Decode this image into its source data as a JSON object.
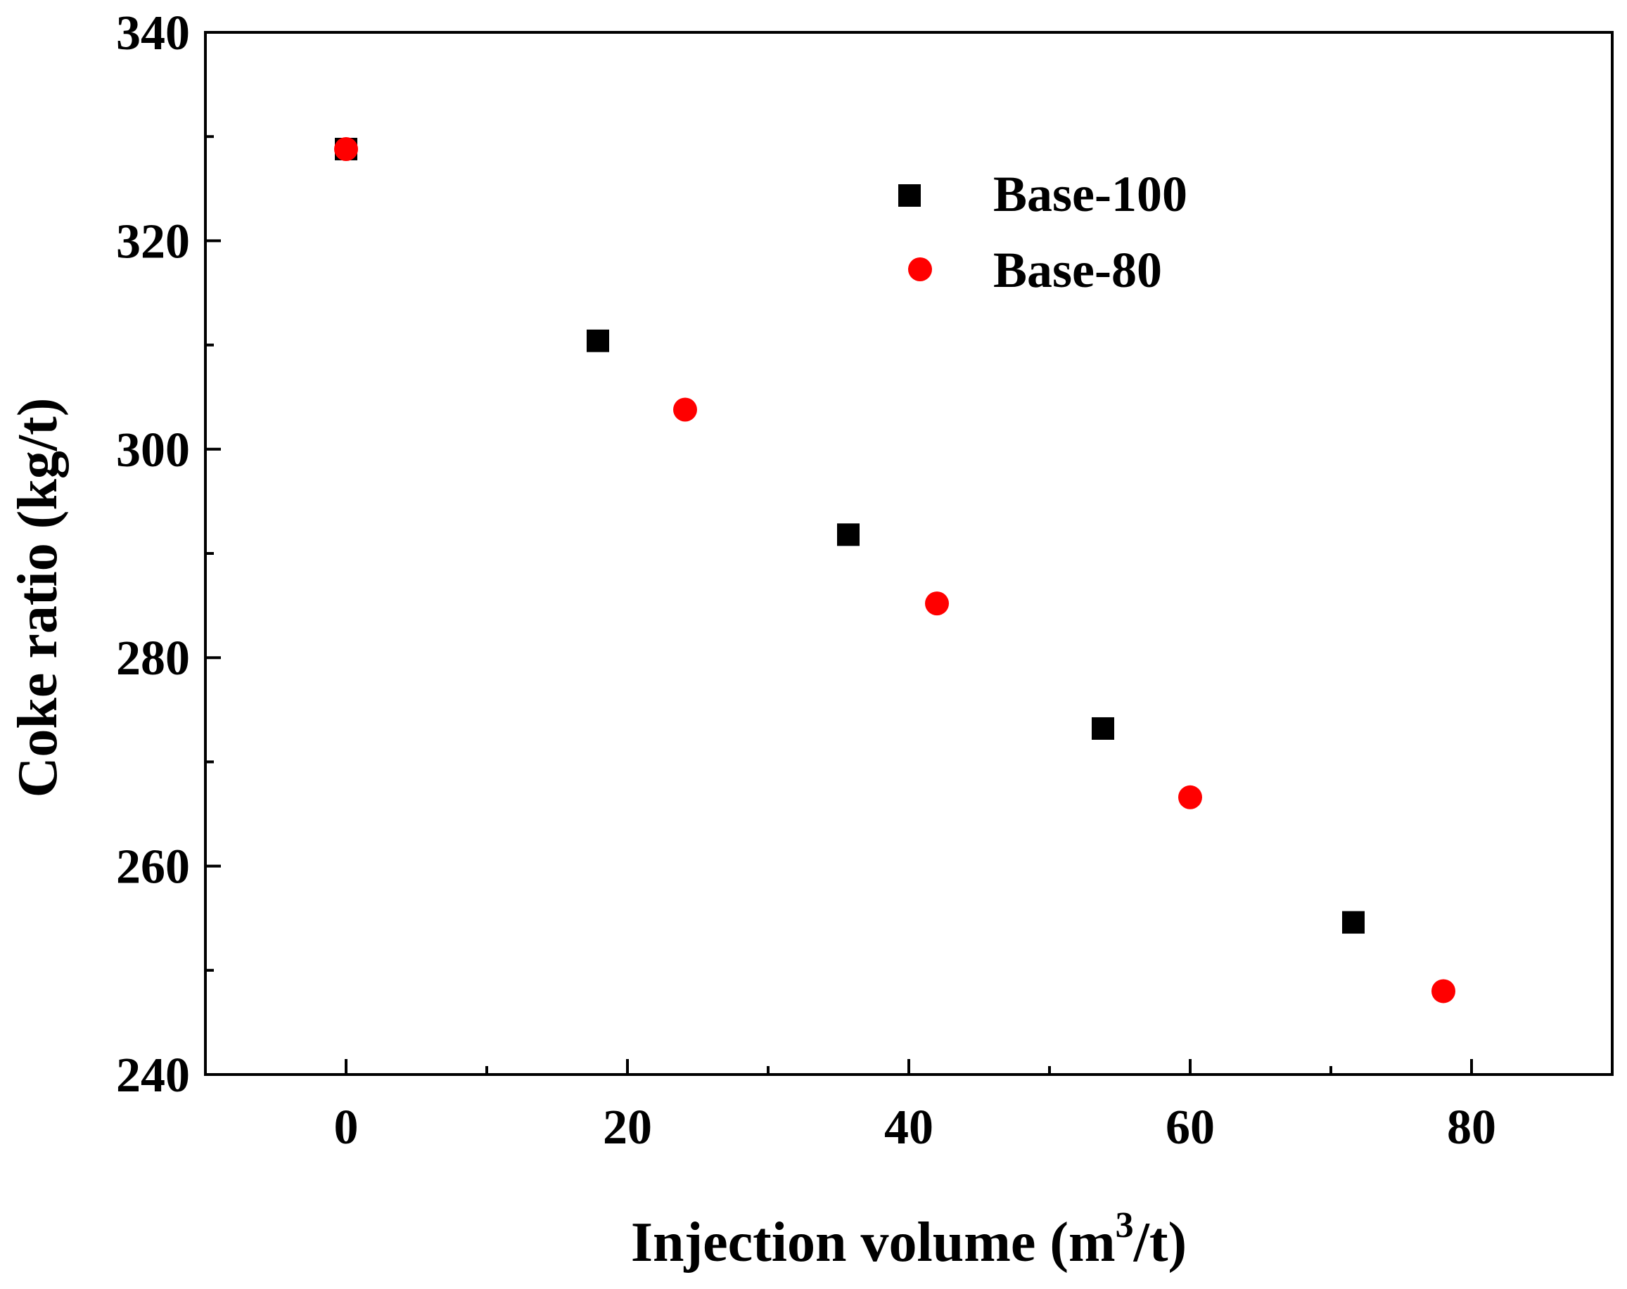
{
  "chart_data": {
    "type": "scatter",
    "title": "",
    "xlabel": {
      "main": "Injection volume (m",
      "superscript": "3",
      "tail": "/t)"
    },
    "ylabel": "Coke ratio (kg/t)",
    "xlim": [
      -10,
      90
    ],
    "ylim": [
      240,
      340
    ],
    "x_ticks": [
      0,
      20,
      40,
      60,
      80
    ],
    "x_minor_ticks": [
      10,
      30,
      50,
      70
    ],
    "y_ticks": [
      240,
      260,
      280,
      300,
      320,
      340
    ],
    "y_minor_ticks": [
      250,
      270,
      290,
      310,
      330
    ],
    "legend_position": "top-right",
    "series": [
      {
        "name": "Base-100",
        "marker": "square",
        "color": "#000000",
        "x": [
          0,
          17.9,
          35.7,
          53.8,
          71.6
        ],
        "y": [
          328.8,
          310.4,
          291.8,
          273.2,
          254.6
        ]
      },
      {
        "name": "Base-80",
        "marker": "circle",
        "color": "#ff0000",
        "x": [
          0,
          24.1,
          42.0,
          60.0,
          78.0
        ],
        "y": [
          328.8,
          303.8,
          285.2,
          266.6,
          248.0
        ]
      }
    ]
  }
}
